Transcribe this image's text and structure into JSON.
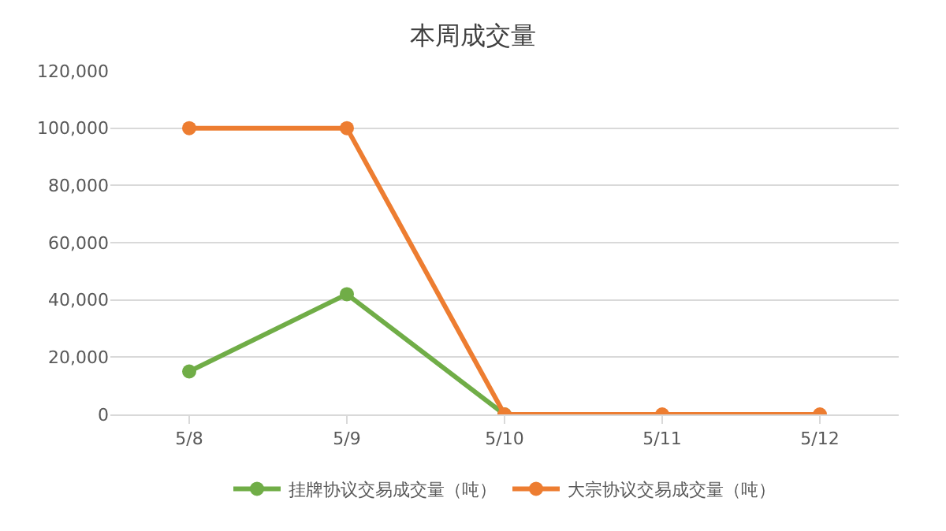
{
  "chart_data": {
    "type": "line",
    "title": "本周成交量",
    "categories": [
      "5/8",
      "5/9",
      "5/10",
      "5/11",
      "5/12"
    ],
    "series": [
      {
        "name": "挂牌协议交易成交量（吨）",
        "color": "#70ad47",
        "values": [
          15000,
          42000,
          0,
          null,
          null
        ]
      },
      {
        "name": "大宗协议交易成交量（吨）",
        "color": "#ed7d31",
        "values": [
          100000,
          100000,
          0,
          0,
          0
        ]
      }
    ],
    "ylim": [
      0,
      120000
    ],
    "yticks": [
      {
        "value": 0,
        "label": "0"
      },
      {
        "value": 20000,
        "label": "20,000"
      },
      {
        "value": 40000,
        "label": "40,000"
      },
      {
        "value": 60000,
        "label": "60,000"
      },
      {
        "value": 80000,
        "label": "80,000"
      },
      {
        "value": 100000,
        "label": "100,000"
      },
      {
        "value": 120000,
        "label": "120,000"
      }
    ],
    "grid": "y",
    "legend": "bottom",
    "marker": "circle",
    "line_style": "solid"
  }
}
